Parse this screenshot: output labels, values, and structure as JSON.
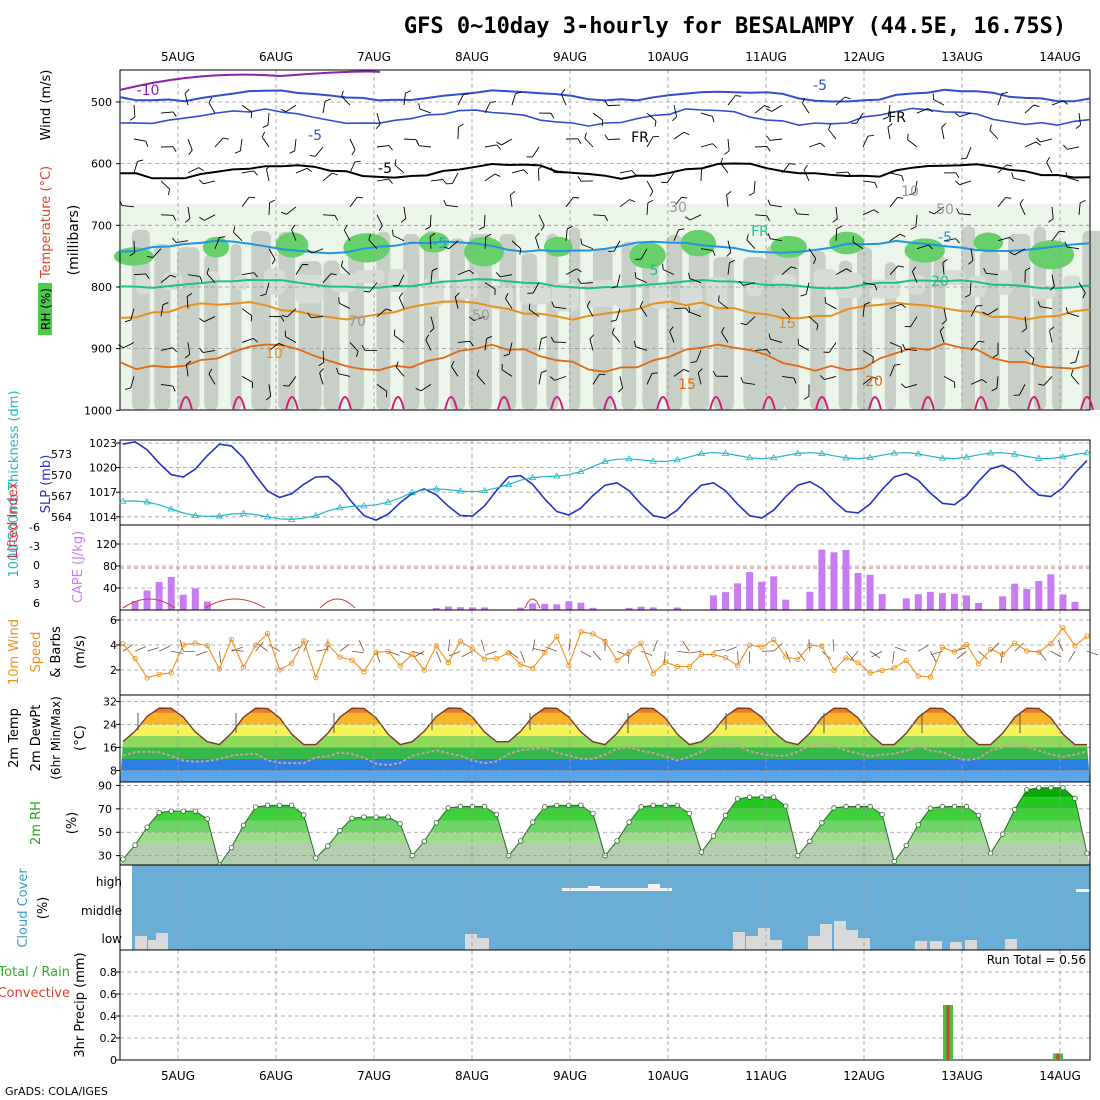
{
  "title": "GFS 0~10day 3-hourly for BESALAMPY (44.5E, 16.75S)",
  "footer": "GrADS: COLA/IGES",
  "dates": [
    "5AUG",
    "6AUG",
    "7AUG",
    "8AUG",
    "9AUG",
    "10AUG",
    "11AUG",
    "12AUG",
    "13AUG",
    "14AUG"
  ],
  "colors": {
    "slp": "#1f35c8",
    "thickness": "#22b6c8",
    "cape": "#c77cf2",
    "lifted": "#e0332f",
    "wind10": "#f0901e",
    "temp_hot": "#e8641a",
    "temp_warm": "#f9c22b",
    "rh_green": "#22c71f",
    "cloud_bg": "#6aaed6",
    "cloud_fill": "#d9d9d9",
    "precip_total": "#3ec43e",
    "precip_conv": "#e03c2f"
  },
  "panels": {
    "upper": {
      "left_label_rh": "RH (%)",
      "left_label_temp": "Temperature (°C)",
      "left_label_wind": "Wind (m/s)",
      "axis_label": "(millibars)",
      "ticks": [
        "500",
        "600",
        "700",
        "800",
        "900",
        "1000"
      ],
      "contour_labels": [
        "-10",
        "-5",
        "-5",
        "-5",
        "-5",
        "-5",
        "FR",
        "FR",
        "FR",
        "5",
        "10",
        "15",
        "15",
        "20",
        "20",
        "10",
        "30",
        "50",
        "70",
        "50"
      ]
    },
    "slp": {
      "label_thick": "1000-500mb Thickness (dm)",
      "label_slp": "SLP (mb)",
      "ticks_thick": [
        "573",
        "570",
        "567",
        "564"
      ],
      "ticks_slp": [
        "1023",
        "1020",
        "1017",
        "1014"
      ]
    },
    "cape": {
      "label_li": "Lifted Index",
      "label_cape": "CAPE (J/kg)",
      "ticks_li": [
        "-6",
        "-3",
        "0",
        "3",
        "6"
      ],
      "ticks_cape": [
        "120",
        "80",
        "40"
      ]
    },
    "wind": {
      "label_a": "10m Wind",
      "label_b": "Speed",
      "label_c": "& Barbs",
      "label_unit": "(m/s)",
      "ticks": [
        "6",
        "4",
        "2"
      ]
    },
    "temp": {
      "label_a": "2m Temp",
      "label_b": "2m DewPt",
      "label_c": "(6hr Min/Max)",
      "label_unit": "(°C)",
      "ticks": [
        "32",
        "24",
        "16",
        "8"
      ]
    },
    "rh": {
      "label_a": "2m RH",
      "label_unit": "(%)",
      "ticks": [
        "90",
        "70",
        "50",
        "30"
      ]
    },
    "cloud": {
      "label_a": "Cloud Cover",
      "label_unit": "(%)",
      "ticks": [
        "high",
        "middle",
        "low"
      ]
    },
    "precip": {
      "label_a": "3hr Precip (mm)",
      "label_total": "Total / Rain",
      "label_conv": "Convective",
      "ticks": [
        "0.8",
        "0.6",
        "0.4",
        "0.2",
        "0"
      ],
      "run_total": "Run Total = 0.56"
    }
  },
  "chart_data": [
    {
      "type": "line",
      "x": [
        "5AUG",
        "6AUG",
        "7AUG",
        "8AUG",
        "9AUG",
        "10AUG",
        "11AUG",
        "12AUG",
        "13AUG",
        "14AUG"
      ],
      "series": [
        {
          "name": "SLP (mb)",
          "values": [
            1021,
            1021,
            1017,
            1015,
            1017,
            1016,
            1016,
            1016,
            1017,
            1018
          ]
        },
        {
          "name": "1000-500mb Thickness (dm)",
          "values": [
            566,
            564,
            564,
            567,
            568,
            571,
            572,
            572,
            572,
            572
          ]
        }
      ]
    },
    {
      "type": "bar",
      "x": [
        "5AUG",
        "6AUG",
        "7AUG",
        "8AUG",
        "9AUG",
        "10AUG",
        "11AUG",
        "12AUG",
        "13AUG",
        "14AUG"
      ],
      "series": [
        {
          "name": "CAPE (J/kg)",
          "values": [
            45,
            0,
            0,
            5,
            15,
            5,
            65,
            120,
            40,
            60
          ]
        },
        {
          "name": "Lifted Index",
          "values": [
            4,
            5,
            5,
            5,
            4,
            6,
            6,
            6,
            6,
            6
          ]
        }
      ]
    },
    {
      "type": "line",
      "x": [
        "5AUG",
        "6AUG",
        "7AUG",
        "8AUG",
        "9AUG",
        "10AUG",
        "11AUG",
        "12AUG",
        "13AUG",
        "14AUG"
      ],
      "series": [
        {
          "name": "10m Wind Speed (m/s)",
          "values": [
            2.7,
            3.5,
            2.8,
            3.3,
            3.6,
            3.0,
            3.5,
            3.0,
            2.6,
            3.9
          ]
        }
      ]
    },
    {
      "type": "area",
      "x": [
        "5AUG",
        "6AUG",
        "7AUG",
        "8AUG",
        "9AUG",
        "10AUG",
        "11AUG",
        "12AUG",
        "13AUG",
        "14AUG"
      ],
      "series": [
        {
          "name": "2m Temp max (°C)",
          "values": [
            30,
            30,
            30,
            30,
            30,
            30,
            30,
            30,
            30,
            30
          ]
        },
        {
          "name": "2m Temp min (°C)",
          "values": [
            18,
            17,
            17,
            18,
            18,
            17,
            18,
            17,
            17,
            17
          ]
        },
        {
          "name": "2m DewPt (°C)",
          "values": [
            13,
            12,
            12,
            13,
            14,
            14,
            15,
            15,
            14,
            15
          ]
        }
      ],
      "ylim": [
        4,
        34
      ]
    },
    {
      "type": "area",
      "x": [
        "5AUG",
        "6AUG",
        "7AUG",
        "8AUG",
        "9AUG",
        "10AUG",
        "11AUG",
        "12AUG",
        "13AUG",
        "14AUG"
      ],
      "series": [
        {
          "name": "2m RH max (%)",
          "values": [
            68,
            73,
            63,
            72,
            73,
            73,
            80,
            72,
            72,
            88
          ]
        },
        {
          "name": "2m RH min (%)",
          "values": [
            27,
            22,
            28,
            30,
            30,
            30,
            33,
            30,
            25,
            32
          ]
        }
      ],
      "ylim": [
        22,
        92
      ]
    },
    {
      "type": "bar",
      "x": [
        "12.9AUG",
        "14.0AUG"
      ],
      "series": [
        {
          "name": "Total / Rain",
          "values": [
            0.5,
            0.06
          ]
        },
        {
          "name": "Convective",
          "values": [
            0.5,
            0.06
          ]
        }
      ],
      "ylim": [
        0,
        1.0
      ]
    }
  ]
}
